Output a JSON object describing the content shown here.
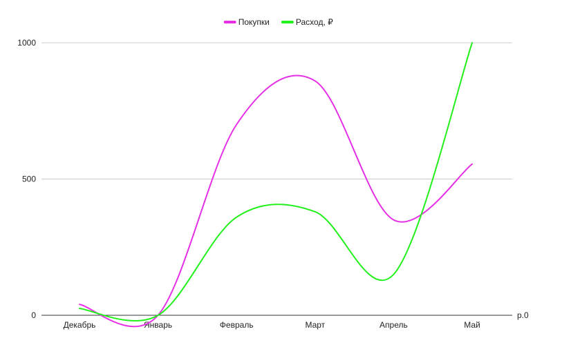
{
  "chart_data": {
    "type": "line",
    "smooth": true,
    "categories": [
      "Декабрь",
      "Январь",
      "Февраль",
      "Март",
      "Апрель",
      "Май"
    ],
    "series": [
      {
        "name": "Покупки",
        "color": "#e52fe5",
        "values": [
          40,
          0,
          700,
          860,
          350,
          555
        ]
      },
      {
        "name": "Расход, ₽",
        "color": "#22f01a",
        "values": [
          25,
          0,
          360,
          380,
          150,
          1000
        ]
      }
    ],
    "yticks": [
      0,
      500,
      1000
    ],
    "ylim": [
      0,
      1000
    ],
    "secondary_axis_label": "р.0",
    "legend_position": "top-center",
    "grid": true
  }
}
